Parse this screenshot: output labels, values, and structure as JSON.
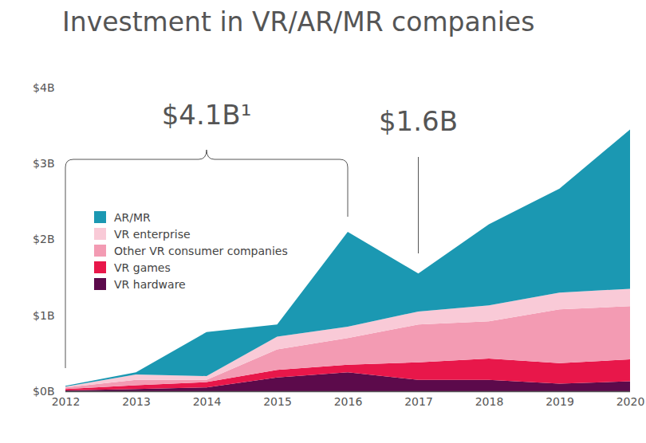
{
  "chart_data": {
    "type": "area",
    "title": "Investment in VR/AR/MR companies",
    "x": [
      2012,
      2013,
      2014,
      2015,
      2016,
      2017,
      2018,
      2019,
      2020
    ],
    "xlim": [
      2012,
      2020
    ],
    "xticks": [
      2012,
      2013,
      2014,
      2015,
      2016,
      2017,
      2018,
      2019,
      2020
    ],
    "ylim": [
      0,
      4
    ],
    "yticks": [
      {
        "value": 0,
        "label": "$0B"
      },
      {
        "value": 1,
        "label": "$1B"
      },
      {
        "value": 2,
        "label": "$2B"
      },
      {
        "value": 3,
        "label": "$3B"
      },
      {
        "value": 4,
        "label": "$4B"
      }
    ],
    "stacked": true,
    "grid": false,
    "legend": "left",
    "series": [
      {
        "name": "VR hardware",
        "color": "#5c0a4b",
        "values": [
          0.01,
          0.03,
          0.05,
          0.18,
          0.25,
          0.15,
          0.15,
          0.1,
          0.13
        ]
      },
      {
        "name": "VR games",
        "color": "#e8174a",
        "values": [
          0.02,
          0.05,
          0.07,
          0.1,
          0.1,
          0.23,
          0.28,
          0.27,
          0.29
        ]
      },
      {
        "name": "Other VR consumer companies",
        "color": "#f39bb3",
        "values": [
          0.02,
          0.07,
          0.03,
          0.27,
          0.35,
          0.5,
          0.49,
          0.71,
          0.7
        ]
      },
      {
        "name": "VR enterprise",
        "color": "#f9cad7",
        "values": [
          0.01,
          0.07,
          0.05,
          0.17,
          0.15,
          0.17,
          0.21,
          0.22,
          0.23
        ]
      },
      {
        "name": "AR/MR",
        "color": "#1b98b2",
        "values": [
          0.01,
          0.03,
          0.58,
          0.16,
          1.25,
          0.5,
          1.07,
          1.37,
          2.1
        ]
      }
    ],
    "annotations": [
      {
        "text": "$4.1B¹",
        "x_start": 2012,
        "x_end": 2016
      },
      {
        "text": "$1.6B",
        "x": 2017
      }
    ]
  }
}
